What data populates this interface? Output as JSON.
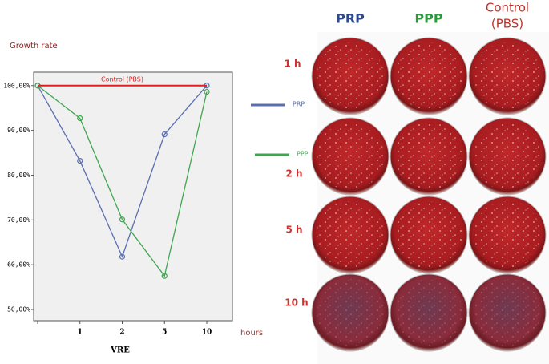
{
  "chart_data": {
    "type": "line",
    "title": "Growth rate",
    "x_label": "VRE",
    "x_unit_label": "hours",
    "categories": [
      null,
      "1",
      "2",
      "5",
      "10"
    ],
    "series": [
      {
        "name": "PRP",
        "color": "#5a6fb0",
        "values": [
          100,
          83.2,
          61.8,
          89.1,
          100
        ],
        "markers": true
      },
      {
        "name": "PPP",
        "color": "#3fa64f",
        "values": [
          100,
          92.7,
          70.1,
          57.5,
          98.6
        ],
        "markers": true
      },
      {
        "name": "Control (PBS)",
        "color": "#e02020",
        "values": [
          100,
          100,
          100,
          100,
          100
        ],
        "markers": false
      }
    ],
    "ylim": [
      47.5,
      103
    ],
    "yticks": [
      {
        "value": 50,
        "label": "50,00%"
      },
      {
        "value": 60,
        "label": "60,00%"
      },
      {
        "value": 70,
        "label": "70,00%"
      },
      {
        "value": 80,
        "label": "80,00%"
      },
      {
        "value": 90,
        "label": "90,00%"
      },
      {
        "value": 100,
        "label": "100,00%"
      }
    ],
    "grid": false
  },
  "photo": {
    "columns": [
      [
        "PRP"
      ],
      [
        "PPP"
      ],
      [
        "Control",
        "(PBS)"
      ]
    ],
    "rows": [
      "1 h",
      "2 h",
      "5 h",
      "10 h"
    ]
  }
}
